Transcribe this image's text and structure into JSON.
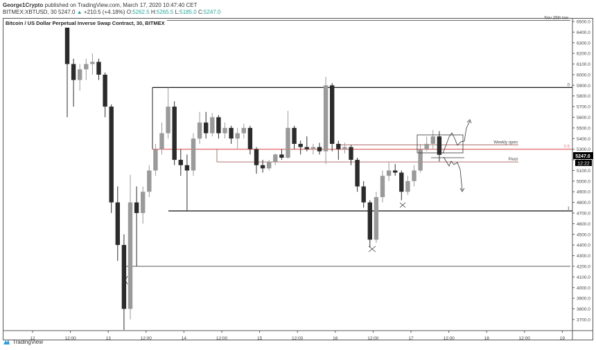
{
  "header": {
    "author": "George1Crypto",
    "published": "published on TradingView.com, March 17, 2020 10:47:40 CET",
    "symbol": "BITMEX:XBTUSD, 30",
    "last": "5247.0",
    "change": "+210.5 (+4.18%)",
    "o_label": "O:",
    "o": "5262.5",
    "h_label": "H:",
    "h": "5265.5",
    "l_label": "L:",
    "l": "5185.0",
    "c_label": "C:",
    "c": "5247.0"
  },
  "chart_title": "Bitcoin / US Dollar Perpetual Inverse Swap Contract, 30, BITMEX",
  "price_badge": "5247.0",
  "countdown_badge": "12:22",
  "footer": {
    "brand": "TradingView"
  },
  "colors": {
    "up": "#9a9a9a",
    "down": "#2b2b2b",
    "fib_mid": "#e57373",
    "level": "#b07070",
    "change_text": "#26a69a"
  },
  "chart_data": {
    "type": "candlestick",
    "title": "Bitcoin / US Dollar Perpetual Inverse Swap Contract, 30, BITMEX",
    "ylim": [
      3650,
      6550
    ],
    "y_ticks": [
      "6500.0",
      "6400.0",
      "6300.0",
      "6200.0",
      "6100.0",
      "6000.0",
      "5900.0",
      "5800.0",
      "5700.0",
      "5600.0",
      "5500.0",
      "5400.0",
      "5300.0",
      "5200.0",
      "5100.0",
      "5000.0",
      "4900.0",
      "4800.0",
      "4700.0",
      "4600.0",
      "4500.0",
      "4400.0",
      "4300.0",
      "4200.0",
      "4100.0",
      "4000.0",
      "3900.0",
      "3800.0",
      "3700.0"
    ],
    "x_ticks": [
      "12",
      "12:00",
      "13",
      "12:00",
      "14",
      "12:00",
      "15",
      "12:00",
      "16",
      "12:00",
      "17",
      "12:00",
      "18",
      "12:00",
      "19"
    ],
    "candles_hours_from_mar12": [
      10,
      12,
      14,
      16,
      18,
      20,
      22,
      24,
      26,
      28,
      30,
      32,
      34,
      36,
      38,
      40,
      42,
      44,
      46,
      48,
      50,
      52,
      54,
      56,
      58,
      60,
      62,
      64,
      66,
      68,
      70,
      72,
      74,
      76,
      78,
      80,
      82,
      84,
      86,
      88,
      90,
      92,
      94,
      96,
      98,
      100,
      102,
      104,
      106,
      108,
      110,
      112,
      114,
      116,
      118,
      120,
      122,
      124,
      126,
      128
    ],
    "ohlc": [
      [
        6650,
        6700,
        5600,
        6100
      ],
      [
        6100,
        6150,
        5700,
        5950
      ],
      [
        5950,
        6100,
        5850,
        6050
      ],
      [
        6050,
        6150,
        5950,
        6100
      ],
      [
        6100,
        6200,
        6000,
        6120
      ],
      [
        6120,
        6150,
        5950,
        6000
      ],
      [
        6000,
        6020,
        5600,
        5700
      ],
      [
        5700,
        5720,
        4700,
        4800
      ],
      [
        4800,
        4950,
        4250,
        4400
      ],
      [
        4400,
        4500,
        3600,
        3800
      ],
      [
        3800,
        5060,
        3700,
        4800
      ],
      [
        4800,
        4950,
        4200,
        4700
      ],
      [
        4700,
        4950,
        4600,
        4900
      ],
      [
        4900,
        5150,
        4850,
        5100
      ],
      [
        5100,
        5350,
        5050,
        5300
      ],
      [
        5300,
        5550,
        5250,
        5450
      ],
      [
        5450,
        5880,
        5400,
        5700
      ],
      [
        5700,
        5750,
        5150,
        5200
      ],
      [
        5200,
        5300,
        5050,
        5150
      ],
      [
        5150,
        5250,
        4720,
        5100
      ],
      [
        5100,
        5450,
        5050,
        5400
      ],
      [
        5400,
        5650,
        5350,
        5550
      ],
      [
        5550,
        5650,
        5400,
        5450
      ],
      [
        5450,
        5640,
        5420,
        5600
      ],
      [
        5600,
        5620,
        5400,
        5450
      ],
      [
        5450,
        5550,
        5400,
        5500
      ],
      [
        5500,
        5520,
        5350,
        5400
      ],
      [
        5400,
        5500,
        5300,
        5450
      ],
      [
        5450,
        5540,
        5400,
        5500
      ],
      [
        5500,
        5520,
        5250,
        5300
      ],
      [
        5300,
        5320,
        5070,
        5150
      ],
      [
        5150,
        5200,
        5080,
        5120
      ],
      [
        5120,
        5200,
        5100,
        5180
      ],
      [
        5180,
        5260,
        5150,
        5250
      ],
      [
        5250,
        5300,
        5200,
        5220
      ],
      [
        5220,
        5660,
        5210,
        5500
      ],
      [
        5500,
        5520,
        5300,
        5350
      ],
      [
        5350,
        5380,
        5250,
        5320
      ],
      [
        5320,
        5420,
        5280,
        5300
      ],
      [
        5300,
        5350,
        5250,
        5320
      ],
      [
        5320,
        5360,
        5250,
        5280
      ],
      [
        5280,
        5980,
        5160,
        5900
      ],
      [
        5900,
        5920,
        5280,
        5350
      ],
      [
        5350,
        5380,
        5200,
        5300
      ],
      [
        5300,
        5360,
        5260,
        5320
      ],
      [
        5320,
        5340,
        5150,
        5200
      ],
      [
        5200,
        5220,
        4900,
        4950
      ],
      [
        4950,
        5000,
        4750,
        4800
      ],
      [
        4800,
        4820,
        4380,
        4450
      ],
      [
        4450,
        4900,
        4420,
        4850
      ],
      [
        4850,
        5100,
        4800,
        5050
      ],
      [
        5050,
        5180,
        5000,
        5100
      ],
      [
        5100,
        5160,
        5050,
        5080
      ],
      [
        5080,
        5100,
        4820,
        4900
      ],
      [
        4900,
        5050,
        4870,
        5000
      ],
      [
        5000,
        5150,
        4950,
        5100
      ],
      [
        5100,
        5350,
        5080,
        5300
      ],
      [
        5300,
        5420,
        5280,
        5350
      ],
      [
        5350,
        5480,
        5300,
        5420
      ],
      [
        5420,
        5470,
        5185,
        5247
      ]
    ],
    "levels": [
      {
        "label": "Nov 25th low",
        "price": 6510
      },
      {
        "label": "0",
        "price": 5880
      },
      {
        "label": "0.5",
        "price": 5300
      },
      {
        "label": "1",
        "price": 4720
      },
      {
        "label": "",
        "price": 4200
      },
      {
        "label": "Weekly open",
        "price": 5340
      },
      {
        "label": "Pivot",
        "price": 5180
      }
    ]
  }
}
